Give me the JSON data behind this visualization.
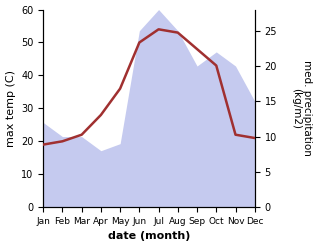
{
  "months": [
    "Jan",
    "Feb",
    "Mar",
    "Apr",
    "May",
    "Jun",
    "Jul",
    "Aug",
    "Sep",
    "Oct",
    "Nov",
    "Dec"
  ],
  "max_temp": [
    19,
    20,
    22,
    28,
    36,
    50,
    54,
    53,
    48,
    43,
    22,
    21
  ],
  "precipitation": [
    12,
    10,
    10,
    8,
    9,
    25,
    28,
    25,
    20,
    22,
    20,
    15
  ],
  "temp_color": "#a03030",
  "precip_fill_color": "#c5caef",
  "temp_ylim": [
    0,
    60
  ],
  "precip_ylim": [
    0,
    28
  ],
  "precip_right_ticks": [
    0,
    5,
    10,
    15,
    20,
    25
  ],
  "temp_left_ticks": [
    0,
    10,
    20,
    30,
    40,
    50,
    60
  ],
  "xlabel": "date (month)",
  "ylabel_left": "max temp (C)",
  "ylabel_right": "med. precipitation\n(kg/m2)",
  "bg_color": "#ffffff"
}
